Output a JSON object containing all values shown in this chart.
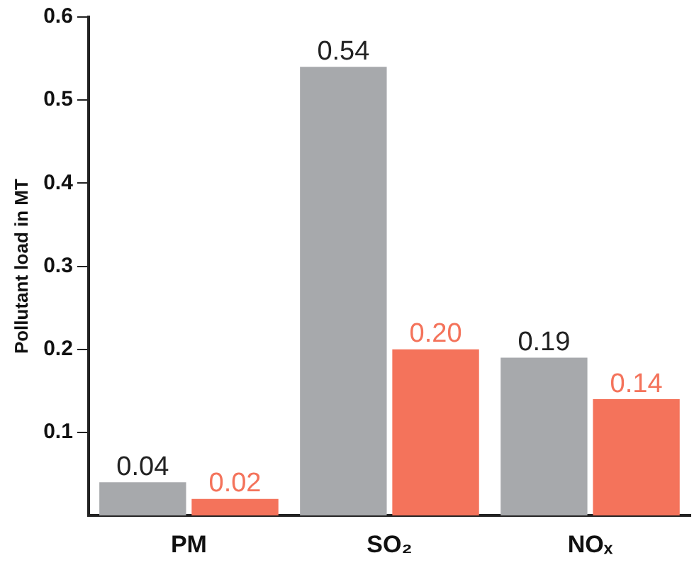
{
  "chart_data": {
    "type": "bar",
    "ylabel": "Pollutant load in MT",
    "categories": [
      "PM",
      "SO₂",
      "NOₓ"
    ],
    "series": [
      {
        "color": "#a7a9ac",
        "values": [
          0.04,
          0.54,
          0.19
        ],
        "value_labels": [
          "0.04",
          "0.54",
          "0.19"
        ]
      },
      {
        "color": "#f4735b",
        "values": [
          0.02,
          0.2,
          0.14
        ],
        "value_labels": [
          "0.02",
          "0.20",
          "0.14"
        ]
      }
    ],
    "ylim": [
      0,
      0.6
    ],
    "yticks": [
      0.1,
      0.2,
      0.3,
      0.4,
      0.5,
      0.6
    ],
    "grid": false,
    "legend": false
  }
}
